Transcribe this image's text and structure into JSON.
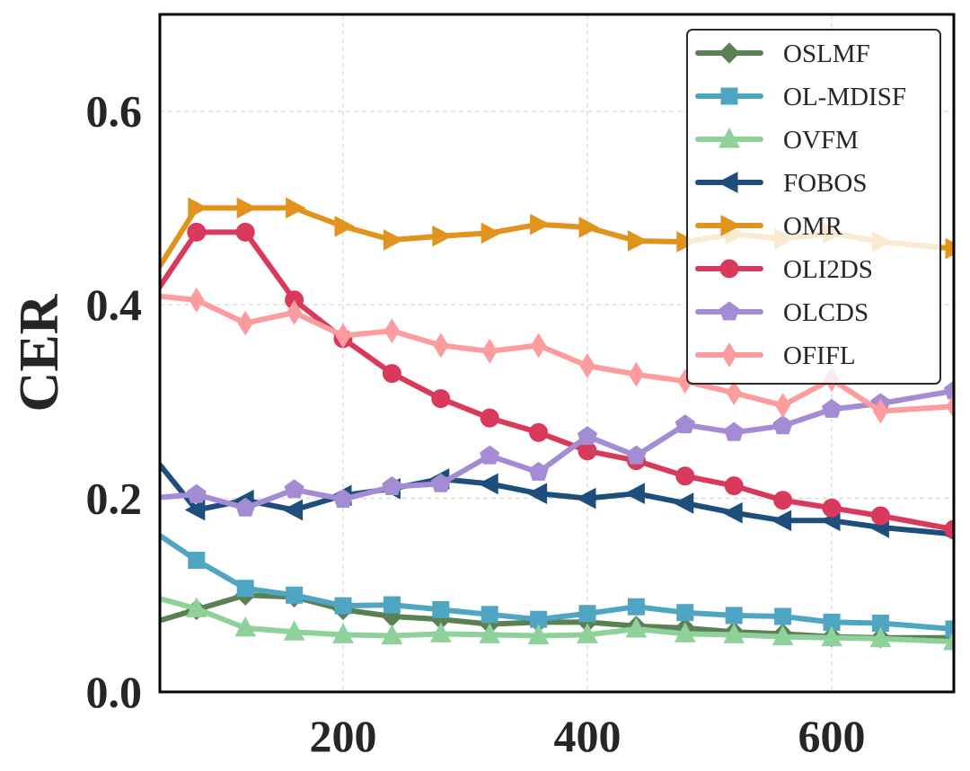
{
  "chart_data": {
    "type": "line",
    "title": "",
    "xlabel": "",
    "ylabel": "CER",
    "xlim": [
      50,
      700
    ],
    "ylim": [
      0.0,
      0.7
    ],
    "xticks": [
      200,
      400,
      600
    ],
    "yticks": [
      0.0,
      0.2,
      0.4,
      0.6
    ],
    "xtick_labels": [
      "200",
      "400",
      "600"
    ],
    "ytick_labels": [
      "0.0",
      "0.2",
      "0.4",
      "0.6"
    ],
    "grid": true,
    "legend_position": "top-right",
    "series": [
      {
        "name": "OSLMF",
        "color": "#5a8054",
        "marker": "diamond",
        "x": [
          40,
          80,
          120,
          160,
          200,
          240,
          280,
          320,
          360,
          400,
          440,
          480,
          520,
          560,
          600,
          640,
          700
        ],
        "y": [
          0.07,
          0.085,
          0.1,
          0.098,
          0.085,
          0.078,
          0.075,
          0.07,
          0.072,
          0.072,
          0.068,
          0.066,
          0.062,
          0.06,
          0.057,
          0.056,
          0.056
        ]
      },
      {
        "name": "OL-MDISF",
        "color": "#4ea6c2",
        "marker": "square",
        "x": [
          40,
          80,
          120,
          160,
          200,
          240,
          280,
          320,
          360,
          400,
          440,
          480,
          520,
          560,
          600,
          640,
          700
        ],
        "y": [
          0.17,
          0.136,
          0.107,
          0.1,
          0.089,
          0.09,
          0.085,
          0.08,
          0.075,
          0.081,
          0.088,
          0.082,
          0.079,
          0.078,
          0.072,
          0.071,
          0.065
        ]
      },
      {
        "name": "OVFM",
        "color": "#8fd19a",
        "marker": "triangle-up",
        "x": [
          40,
          80,
          120,
          160,
          200,
          240,
          280,
          320,
          360,
          400,
          440,
          480,
          520,
          560,
          600,
          640,
          700
        ],
        "y": [
          0.1,
          0.086,
          0.066,
          0.062,
          0.059,
          0.058,
          0.06,
          0.059,
          0.058,
          0.059,
          0.065,
          0.06,
          0.059,
          0.057,
          0.056,
          0.055,
          0.052
        ]
      },
      {
        "name": "FOBOS",
        "color": "#1d4e7c",
        "marker": "triangle-left",
        "x": [
          40,
          80,
          120,
          160,
          200,
          240,
          280,
          320,
          360,
          400,
          440,
          480,
          520,
          560,
          600,
          640,
          700
        ],
        "y": [
          0.25,
          0.188,
          0.198,
          0.188,
          0.203,
          0.21,
          0.22,
          0.215,
          0.205,
          0.2,
          0.205,
          0.195,
          0.185,
          0.177,
          0.177,
          0.17,
          0.163
        ]
      },
      {
        "name": "OMR",
        "color": "#e0941e",
        "marker": "triangle-right",
        "x": [
          40,
          80,
          120,
          160,
          200,
          240,
          280,
          320,
          360,
          400,
          440,
          480,
          520,
          560,
          600,
          640,
          700
        ],
        "y": [
          0.42,
          0.5,
          0.5,
          0.5,
          0.481,
          0.467,
          0.471,
          0.474,
          0.483,
          0.48,
          0.466,
          0.465,
          0.473,
          0.468,
          0.474,
          0.465,
          0.458
        ]
      },
      {
        "name": "OLI2DS",
        "color": "#d9395a",
        "marker": "circle",
        "x": [
          40,
          80,
          120,
          160,
          200,
          240,
          280,
          320,
          360,
          400,
          440,
          480,
          520,
          560,
          600,
          640,
          700
        ],
        "y": [
          0.4,
          0.475,
          0.475,
          0.405,
          0.365,
          0.329,
          0.303,
          0.283,
          0.268,
          0.249,
          0.239,
          0.223,
          0.213,
          0.198,
          0.19,
          0.182,
          0.168
        ]
      },
      {
        "name": "OLCDS",
        "color": "#a48cd4",
        "marker": "pentagon",
        "x": [
          40,
          80,
          120,
          160,
          200,
          240,
          280,
          320,
          360,
          400,
          440,
          480,
          520,
          560,
          600,
          640,
          700
        ],
        "y": [
          0.2,
          0.204,
          0.19,
          0.209,
          0.199,
          0.212,
          0.215,
          0.244,
          0.227,
          0.264,
          0.244,
          0.276,
          0.268,
          0.275,
          0.292,
          0.298,
          0.311
        ]
      },
      {
        "name": "OFIFL",
        "color": "#fc9c9e",
        "marker": "thin-diamond",
        "x": [
          40,
          80,
          120,
          160,
          200,
          240,
          280,
          320,
          360,
          400,
          440,
          480,
          520,
          560,
          600,
          640,
          700
        ],
        "y": [
          0.41,
          0.405,
          0.381,
          0.392,
          0.368,
          0.373,
          0.358,
          0.352,
          0.358,
          0.337,
          0.328,
          0.321,
          0.309,
          0.296,
          0.323,
          0.29,
          0.295
        ]
      }
    ]
  }
}
